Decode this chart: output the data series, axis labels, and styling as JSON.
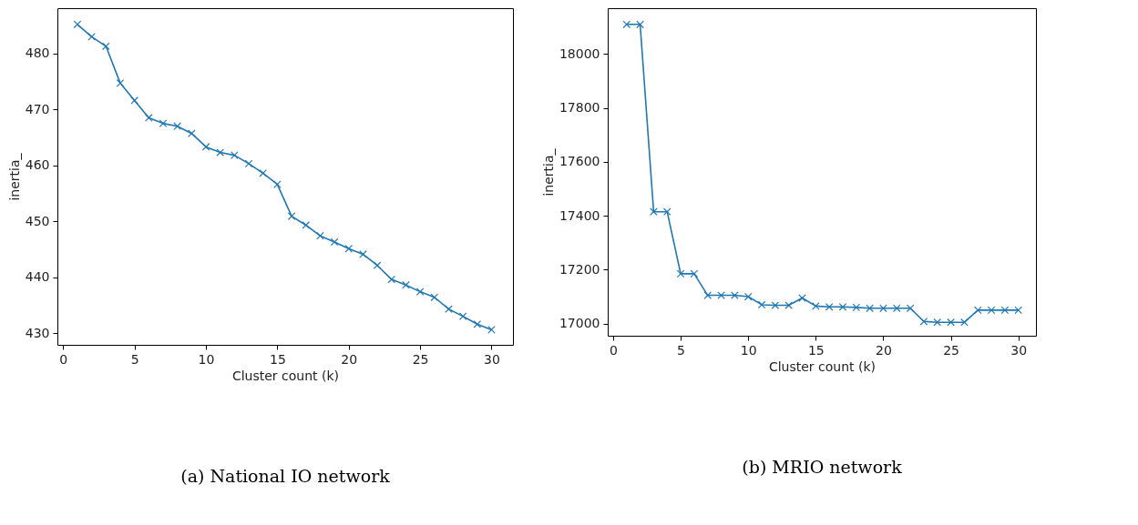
{
  "chart_data": [
    {
      "type": "line",
      "title": "(a) National IO network",
      "xlabel": "Cluster count (k)",
      "ylabel": "inertia_",
      "x": [
        1,
        2,
        3,
        4,
        5,
        6,
        7,
        8,
        9,
        10,
        11,
        12,
        13,
        14,
        15,
        16,
        17,
        18,
        19,
        20,
        21,
        22,
        23,
        24,
        25,
        26,
        27,
        28,
        29,
        30
      ],
      "series": [
        {
          "color": "#1f77b4",
          "values": [
            485.2,
            483.0,
            481.3,
            474.7,
            471.6,
            468.5,
            467.5,
            467.0,
            465.7,
            463.3,
            462.3,
            461.8,
            460.3,
            458.6,
            456.6,
            450.9,
            449.3,
            447.4,
            446.3,
            445.1,
            444.1,
            442.1,
            439.6,
            438.6,
            437.4,
            436.4,
            434.3,
            433.0,
            431.6,
            430.6
          ]
        }
      ],
      "xlim": [
        -0.4,
        31.5
      ],
      "ylim": [
        427.9,
        488.1
      ],
      "xticks": [
        0,
        5,
        10,
        15,
        20,
        25,
        30
      ],
      "yticks": [
        430,
        440,
        450,
        460,
        470,
        480
      ],
      "grid": false,
      "marker": "cross",
      "line_style": "solid"
    },
    {
      "type": "line",
      "title": "(b) MRIO network",
      "xlabel": "Cluster count (k)",
      "ylabel": "inertia_",
      "x": [
        1,
        2,
        3,
        4,
        5,
        6,
        7,
        8,
        9,
        10,
        11,
        12,
        13,
        14,
        15,
        16,
        17,
        18,
        19,
        20,
        21,
        22,
        23,
        24,
        25,
        26,
        27,
        28,
        29,
        30
      ],
      "series": [
        {
          "color": "#1f77b4",
          "values": [
            18110,
            18110,
            17415,
            17415,
            17185,
            17185,
            17105,
            17105,
            17105,
            17100,
            17070,
            17068,
            17068,
            17095,
            17065,
            17062,
            17062,
            17060,
            17057,
            17057,
            17057,
            17057,
            17008,
            17005,
            17005,
            17005,
            17050,
            17050,
            17050,
            17050
          ]
        }
      ],
      "xlim": [
        -0.4,
        31.3
      ],
      "ylim": [
        16955,
        18170
      ],
      "xticks": [
        0,
        5,
        10,
        15,
        20,
        25,
        30
      ],
      "yticks": [
        17000,
        17200,
        17400,
        17600,
        17800,
        18000
      ],
      "grid": false,
      "marker": "cross",
      "line_style": "solid"
    }
  ]
}
